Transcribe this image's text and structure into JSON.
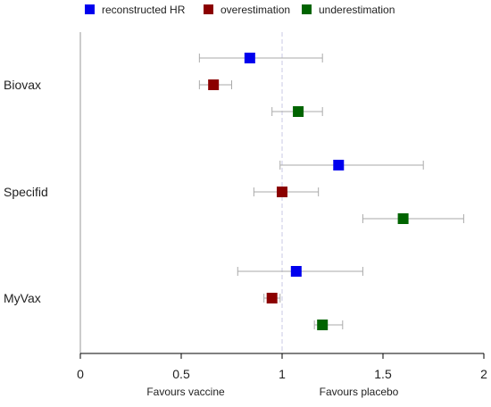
{
  "chart_data": {
    "type": "forest",
    "xlim": [
      0,
      2
    ],
    "x_ticks": [
      0,
      0.5,
      1,
      1.5,
      2
    ],
    "x_tick_labels": [
      "0",
      "0.5",
      "1",
      "1.5",
      "2"
    ],
    "reference_line": 1,
    "subtitles": {
      "left": "Favours vaccine",
      "right": "Favours placebo"
    },
    "legend": {
      "placement": "top",
      "entries": [
        {
          "label": "reconstructed HR",
          "color": "#0000ee"
        },
        {
          "label": "overestimation",
          "color": "#8b0000"
        },
        {
          "label": "underestimation",
          "color": "#006400"
        }
      ]
    },
    "groups": [
      "Biovax",
      "Specifid",
      "MyVax"
    ],
    "series": [
      {
        "name": "reconstructed HR",
        "color": "#0000ee",
        "points": [
          {
            "group": "Biovax",
            "estimate": 0.84,
            "lower": 0.59,
            "upper": 1.2
          },
          {
            "group": "Specifid",
            "estimate": 1.28,
            "lower": 0.99,
            "upper": 1.7
          },
          {
            "group": "MyVax",
            "estimate": 1.07,
            "lower": 0.78,
            "upper": 1.4
          }
        ]
      },
      {
        "name": "overestimation",
        "color": "#8b0000",
        "points": [
          {
            "group": "Biovax",
            "estimate": 0.66,
            "lower": 0.59,
            "upper": 0.75
          },
          {
            "group": "Specifid",
            "estimate": 1.0,
            "lower": 0.86,
            "upper": 1.18
          },
          {
            "group": "MyVax",
            "estimate": 0.95,
            "lower": 0.91,
            "upper": 0.99
          }
        ]
      },
      {
        "name": "underestimation",
        "color": "#006400",
        "points": [
          {
            "group": "Biovax",
            "estimate": 1.08,
            "lower": 0.95,
            "upper": 1.2
          },
          {
            "group": "Specifid",
            "estimate": 1.6,
            "lower": 1.4,
            "upper": 1.9
          },
          {
            "group": "MyVax",
            "estimate": 1.2,
            "lower": 1.16,
            "upper": 1.3
          }
        ]
      }
    ],
    "grid": false
  }
}
